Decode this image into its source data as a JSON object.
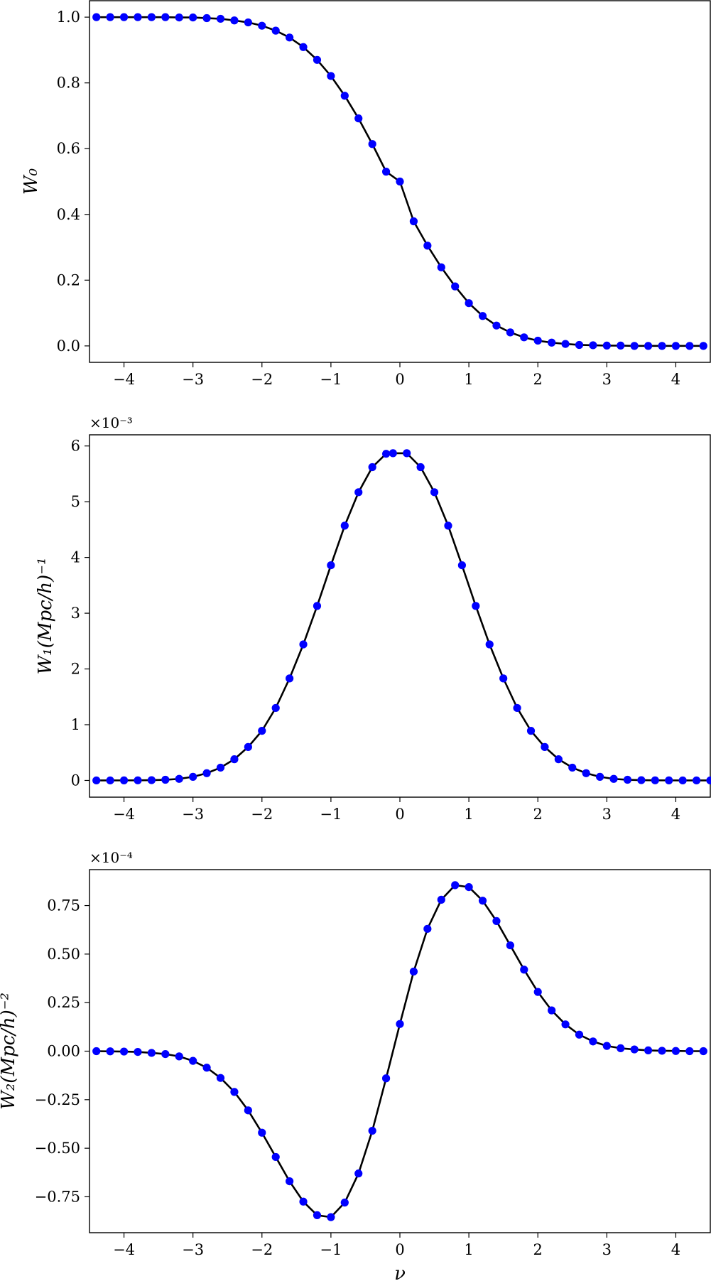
{
  "chart_data": [
    {
      "type": "line",
      "ylabel": "W₀",
      "xlabel": "",
      "multiplier": "",
      "xlim": [
        -4.5,
        4.5
      ],
      "ylim": [
        -0.05,
        1.05
      ],
      "xticks": [
        -4,
        -3,
        -2,
        -1,
        0,
        1,
        2,
        3,
        4
      ],
      "xtick_labels": [
        "−4",
        "−3",
        "−2",
        "−1",
        "0",
        "1",
        "2",
        "3",
        "4"
      ],
      "yticks": [
        0.0,
        0.2,
        0.4,
        0.6,
        0.8,
        1.0
      ],
      "ytick_labels": [
        "0.0",
        "0.2",
        "0.4",
        "0.6",
        "0.8",
        "1.0"
      ],
      "series": [
        {
          "line_color": "#000000",
          "marker_color": "#0000ff",
          "x": [
            -4.4,
            -4.2,
            -4.0,
            -3.8,
            -3.6,
            -3.4,
            -3.2,
            -3.0,
            -2.8,
            -2.6,
            -2.4,
            -2.2,
            -2.0,
            -1.8,
            -1.6,
            -1.4,
            -1.2,
            -1.0,
            -0.8,
            -0.6,
            -0.4,
            -0.2,
            0.0,
            0.2,
            0.4,
            0.6,
            0.8,
            1.0,
            1.2,
            1.4,
            1.6,
            1.8,
            2.0,
            2.2,
            2.4,
            2.6,
            2.8,
            3.0,
            3.2,
            3.4,
            3.6,
            3.8,
            4.0,
            4.2,
            4.4
          ],
          "y": [
            1.0,
            1.0,
            1.0,
            1.0,
            1.0,
            1.0,
            0.999,
            0.999,
            0.997,
            0.995,
            0.99,
            0.984,
            0.974,
            0.959,
            0.938,
            0.909,
            0.87,
            0.821,
            0.761,
            0.692,
            0.614,
            0.53,
            0.5,
            0.379,
            0.305,
            0.239,
            0.181,
            0.13,
            0.091,
            0.062,
            0.041,
            0.026,
            0.016,
            0.01,
            0.006,
            0.003,
            0.002,
            0.001,
            0.001,
            0.0,
            0.0,
            0.0,
            0.0,
            0.0,
            0.0
          ]
        }
      ]
    },
    {
      "type": "line",
      "ylabel": "W₁(Mpc/h)⁻¹",
      "xlabel": "",
      "multiplier": "×10⁻³",
      "xlim": [
        -4.5,
        4.5
      ],
      "ylim": [
        -0.3,
        6.2
      ],
      "xticks": [
        -4,
        -3,
        -2,
        -1,
        0,
        1,
        2,
        3,
        4
      ],
      "xtick_labels": [
        "−4",
        "−3",
        "−2",
        "−1",
        "0",
        "1",
        "2",
        "3",
        "4"
      ],
      "yticks": [
        0,
        1,
        2,
        3,
        4,
        5,
        6
      ],
      "ytick_labels": [
        "0",
        "1",
        "2",
        "3",
        "4",
        "5",
        "6"
      ],
      "series": [
        {
          "line_color": "#000000",
          "marker_color": "#0000ff",
          "x": [
            -4.4,
            -4.2,
            -4.0,
            -3.8,
            -3.6,
            -3.4,
            -3.2,
            -3.0,
            -2.8,
            -2.6,
            -2.4,
            -2.2,
            -2.0,
            -1.8,
            -1.6,
            -1.4,
            -1.2,
            -1.0,
            -0.8,
            -0.6,
            -0.4,
            -0.2,
            -0.1,
            0.1,
            0.3,
            0.5,
            0.7,
            0.9,
            1.1,
            1.3,
            1.5,
            1.7,
            1.9,
            2.1,
            2.3,
            2.5,
            2.7,
            2.9,
            3.1,
            3.3,
            3.5,
            3.7,
            3.9,
            4.1,
            4.3,
            4.5
          ],
          "y": [
            0.0,
            0.0,
            0.001,
            0.002,
            0.005,
            0.012,
            0.028,
            0.065,
            0.13,
            0.23,
            0.38,
            0.6,
            0.89,
            1.3,
            1.83,
            2.44,
            3.13,
            3.86,
            4.57,
            5.17,
            5.62,
            5.86,
            5.87,
            5.87,
            5.62,
            5.17,
            4.57,
            3.86,
            3.13,
            2.44,
            1.83,
            1.3,
            0.89,
            0.6,
            0.38,
            0.23,
            0.13,
            0.065,
            0.028,
            0.012,
            0.005,
            0.002,
            0.001,
            0.0,
            0.0,
            0.0
          ]
        }
      ]
    },
    {
      "type": "line",
      "ylabel": "W₂(Mpc/h)⁻²",
      "xlabel": "ν",
      "multiplier": "×10⁻⁴",
      "xlim": [
        -4.5,
        4.5
      ],
      "ylim": [
        -0.935,
        0.935
      ],
      "xticks": [
        -4,
        -3,
        -2,
        -1,
        0,
        1,
        2,
        3,
        4
      ],
      "xtick_labels": [
        "−4",
        "−3",
        "−2",
        "−1",
        "0",
        "1",
        "2",
        "3",
        "4"
      ],
      "yticks": [
        -0.75,
        -0.5,
        -0.25,
        0.0,
        0.25,
        0.5,
        0.75
      ],
      "ytick_labels": [
        "−0.75",
        "−0.50",
        "−0.25",
        "0.00",
        "0.25",
        "0.50",
        "0.75"
      ],
      "series": [
        {
          "line_color": "#000000",
          "marker_color": "#0000ff",
          "x": [
            -4.4,
            -4.2,
            -4.0,
            -3.8,
            -3.6,
            -3.4,
            -3.2,
            -3.0,
            -2.8,
            -2.6,
            -2.4,
            -2.2,
            -2.0,
            -1.8,
            -1.6,
            -1.4,
            -1.2,
            -1.0,
            -0.8,
            -0.6,
            -0.4,
            -0.2,
            0.0,
            0.2,
            0.4,
            0.6,
            0.8,
            1.0,
            1.2,
            1.4,
            1.6,
            1.8,
            2.0,
            2.2,
            2.4,
            2.6,
            2.8,
            3.0,
            3.2,
            3.4,
            3.6,
            3.8,
            4.0,
            4.2,
            4.4
          ],
          "y": [
            0.0,
            -0.001,
            -0.002,
            -0.004,
            -0.009,
            -0.015,
            -0.027,
            -0.05,
            -0.085,
            -0.138,
            -0.21,
            -0.305,
            -0.42,
            -0.545,
            -0.67,
            -0.775,
            -0.845,
            -0.855,
            -0.78,
            -0.63,
            -0.41,
            -0.14,
            0.14,
            0.41,
            0.63,
            0.78,
            0.855,
            0.845,
            0.775,
            0.67,
            0.545,
            0.42,
            0.305,
            0.21,
            0.138,
            0.085,
            0.05,
            0.027,
            0.015,
            0.009,
            0.004,
            0.002,
            0.001,
            0.0,
            0.0
          ]
        }
      ]
    }
  ]
}
